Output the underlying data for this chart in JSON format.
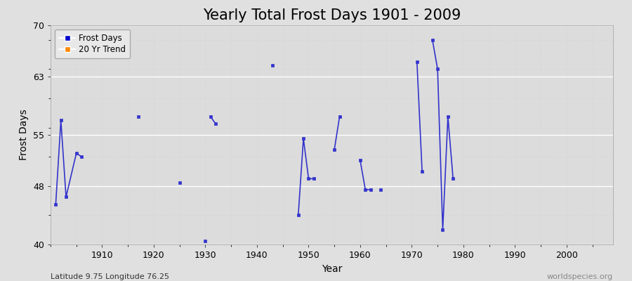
{
  "title": "Yearly Total Frost Days 1901 - 2009",
  "xlabel": "Year",
  "ylabel": "Frost Days",
  "subtitle": "Latitude 9.75 Longitude 76.25",
  "watermark": "worldspecies.org",
  "xlim": [
    1900,
    2009
  ],
  "ylim": [
    40,
    70
  ],
  "yticks": [
    40,
    48,
    55,
    63,
    70
  ],
  "xticks": [
    1910,
    1920,
    1930,
    1940,
    1950,
    1960,
    1970,
    1980,
    1990,
    2000
  ],
  "background_color": "#e0e0e0",
  "plot_background": "#dcdcdc",
  "line_color": "#3333cc",
  "connected_segments": [
    [
      [
        1901,
        45.5
      ],
      [
        1902,
        57.0
      ],
      [
        1903,
        46.5
      ],
      [
        1905,
        52.5
      ],
      [
        1906,
        52.0
      ]
    ],
    [
      [
        1931,
        57.5
      ],
      [
        1932,
        56.5
      ]
    ],
    [
      [
        1948,
        44.0
      ],
      [
        1949,
        54.5
      ],
      [
        1950,
        49.0
      ],
      [
        1951,
        49.0
      ]
    ],
    [
      [
        1955,
        53.0
      ],
      [
        1956,
        57.5
      ]
    ],
    [
      [
        1960,
        51.5
      ],
      [
        1961,
        47.5
      ],
      [
        1962,
        47.5
      ]
    ],
    [
      [
        1971,
        65.0
      ],
      [
        1972,
        50.0
      ]
    ],
    [
      [
        1974,
        68.0
      ],
      [
        1975,
        64.0
      ],
      [
        1976,
        42.0
      ],
      [
        1977,
        57.5
      ],
      [
        1978,
        49.0
      ]
    ]
  ],
  "isolated_points": [
    [
      1917,
      57.5
    ],
    [
      1925,
      48.5
    ],
    [
      1930,
      40.5
    ],
    [
      1943,
      64.5
    ],
    [
      1964,
      47.5
    ]
  ],
  "title_fontsize": 15,
  "axis_label_fontsize": 10,
  "tick_fontsize": 9,
  "legend_color_frost": "#0000cc",
  "legend_color_trend": "#ff8800",
  "grid_color": "#ffffff",
  "minor_grid_color": "#cccccc"
}
